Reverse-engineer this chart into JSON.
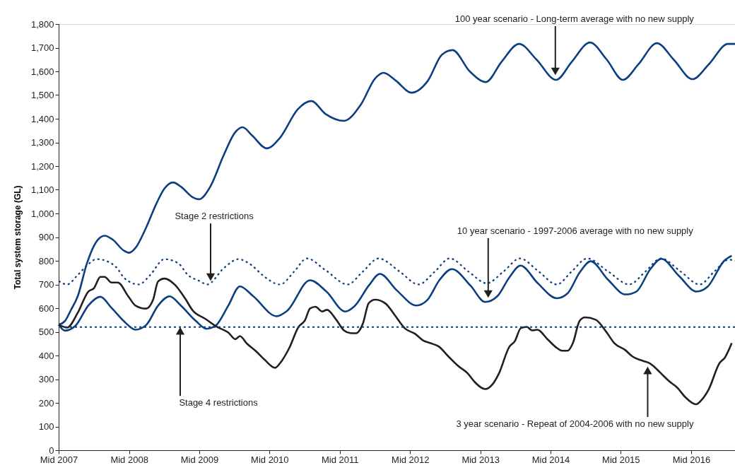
{
  "chart_data": {
    "type": "line",
    "ylabel": "Total system storage (GL)",
    "xlim": [
      "2007-07-01",
      "2017-02-14"
    ],
    "ylim": [
      0,
      1800
    ],
    "xticks": [
      {
        "value": "2007-07-01",
        "label": "Mid 2007"
      },
      {
        "value": "2008-07-01",
        "label": "Mid 2008"
      },
      {
        "value": "2009-07-01",
        "label": "Mid 2009"
      },
      {
        "value": "2010-07-01",
        "label": "Mid 2010"
      },
      {
        "value": "2011-07-01",
        "label": "Mid 2011"
      },
      {
        "value": "2012-07-01",
        "label": "Mid 2012"
      },
      {
        "value": "2013-07-01",
        "label": "Mid 2013"
      },
      {
        "value": "2014-07-01",
        "label": "Mid 2014"
      },
      {
        "value": "2015-07-01",
        "label": "Mid 2015"
      },
      {
        "value": "2016-07-01",
        "label": "Mid 2016"
      }
    ],
    "yticks": [
      {
        "value": 0,
        "label": "0"
      },
      {
        "value": 100,
        "label": "100"
      },
      {
        "value": 200,
        "label": "200"
      },
      {
        "value": 300,
        "label": "300"
      },
      {
        "value": 400,
        "label": "400"
      },
      {
        "value": 500,
        "label": "500"
      },
      {
        "value": 600,
        "label": "600"
      },
      {
        "value": 700,
        "label": "700"
      },
      {
        "value": 800,
        "label": "800"
      },
      {
        "value": 900,
        "label": "900"
      },
      {
        "value": 1000,
        "label": "1,000"
      },
      {
        "value": 1100,
        "label": "1,100"
      },
      {
        "value": 1200,
        "label": "1,200"
      },
      {
        "value": 1300,
        "label": "1,300"
      },
      {
        "value": 1400,
        "label": "1,400"
      },
      {
        "value": 1500,
        "label": "1,500"
      },
      {
        "value": 1600,
        "label": "1,600"
      },
      {
        "value": 1700,
        "label": "1,700"
      },
      {
        "value": 1800,
        "label": "1,800"
      }
    ],
    "grid": false,
    "marker": "none",
    "series": [
      {
        "color": "#0b3f80",
        "line_style": "solid",
        "x": [
          "2007-07-01",
          "2007-08-03",
          "2007-09-02",
          "2007-10-08",
          "2007-11-25",
          "2008-01-01",
          "2008-02-03",
          "2008-02-25",
          "2008-04-08",
          "2008-06-02",
          "2008-07-01",
          "2008-08-03",
          "2008-09-27",
          "2008-11-21",
          "2009-01-01",
          "2009-02-14",
          "2009-04-01",
          "2009-05-25",
          "2009-07-01",
          "2009-08-25",
          "2009-11-07",
          "2010-01-01",
          "2010-02-11",
          "2010-04-01",
          "2010-06-17",
          "2010-08-25",
          "2010-11-25",
          "2011-02-03",
          "2011-04-19",
          "2011-07-23",
          "2011-10-19",
          "2012-01-01",
          "2012-02-14",
          "2012-04-19",
          "2012-07-08",
          "2012-10-01",
          "2012-12-13",
          "2013-02-07",
          "2013-05-07",
          "2013-07-30",
          "2013-10-19",
          "2014-01-19",
          "2014-04-19",
          "2014-07-30",
          "2014-10-19",
          "2015-01-22",
          "2015-04-19",
          "2015-07-12",
          "2015-10-01",
          "2016-01-05",
          "2016-04-01",
          "2016-07-08",
          "2016-10-01",
          "2017-01-08",
          "2017-02-14"
        ],
        "values": [
          530,
          546,
          591,
          650,
          789,
          864,
          899,
          906,
          889,
          844,
          834,
          854,
          939,
          1043,
          1105,
          1131,
          1110,
          1070,
          1060,
          1110,
          1250,
          1340,
          1364,
          1330,
          1275,
          1320,
          1440,
          1475,
          1420,
          1391,
          1460,
          1570,
          1594,
          1560,
          1510,
          1560,
          1670,
          1690,
          1600,
          1555,
          1640,
          1716,
          1650,
          1564,
          1640,
          1722,
          1650,
          1564,
          1630,
          1719,
          1650,
          1567,
          1630,
          1716,
          1716
        ]
      },
      {
        "color": "#0b3f80",
        "line_style": "dotted",
        "x": [
          "2007-07-01",
          "2007-08-14",
          "2007-10-08",
          "2007-11-25",
          "2008-01-15",
          "2008-03-02",
          "2008-04-26",
          "2008-06-09",
          "2008-08-21",
          "2008-10-19",
          "2009-01-01",
          "2009-03-13",
          "2009-05-03",
          "2009-07-01",
          "2009-08-11",
          "2009-11-07",
          "2010-01-19",
          "2010-04-01",
          "2010-05-25",
          "2010-08-25",
          "2010-11-07",
          "2011-01-11",
          "2011-04-19",
          "2011-08-11",
          "2011-10-30",
          "2012-01-19",
          "2012-05-07",
          "2012-08-14",
          "2012-11-07",
          "2013-01-23",
          "2013-04-30",
          "2013-08-03",
          "2013-10-30",
          "2014-01-23",
          "2014-04-30",
          "2014-08-03",
          "2014-10-19",
          "2015-01-08",
          "2015-04-26",
          "2015-08-14",
          "2015-11-07",
          "2016-01-26",
          "2016-05-07",
          "2016-08-14",
          "2016-10-30",
          "2017-01-12",
          "2017-02-14"
        ],
        "values": [
          715,
          700,
          740,
          780,
          807,
          800,
          772,
          725,
          700,
          740,
          807,
          790,
          740,
          715,
          700,
          770,
          807,
          780,
          740,
          700,
          755,
          810,
          760,
          700,
          755,
          810,
          755,
          700,
          755,
          810,
          755,
          705,
          755,
          810,
          755,
          700,
          755,
          810,
          755,
          700,
          755,
          810,
          755,
          700,
          755,
          805,
          800
        ]
      },
      {
        "color": "#0b3f80",
        "line_style": "solid",
        "x": [
          "2007-07-01",
          "2007-08-03",
          "2007-09-27",
          "2007-12-02",
          "2008-02-03",
          "2008-04-01",
          "2008-06-09",
          "2008-08-03",
          "2008-09-27",
          "2008-11-29",
          "2009-01-28",
          "2009-03-27",
          "2009-06-13",
          "2009-08-07",
          "2009-09-24",
          "2009-11-29",
          "2010-01-28",
          "2010-04-08",
          "2010-08-07",
          "2010-10-01",
          "2011-01-28",
          "2011-04-23",
          "2011-07-30",
          "2011-09-17",
          "2011-11-29",
          "2012-01-26",
          "2012-04-23",
          "2012-08-03",
          "2012-09-27",
          "2012-12-02",
          "2013-02-03",
          "2013-05-11",
          "2013-07-26",
          "2013-09-27",
          "2013-11-29",
          "2014-01-26",
          "2014-04-26",
          "2014-08-03",
          "2014-09-27",
          "2014-11-29",
          "2015-01-26",
          "2015-04-26",
          "2015-07-26",
          "2015-09-20",
          "2015-12-02",
          "2016-01-28",
          "2016-04-30",
          "2016-07-30",
          "2016-09-24",
          "2016-12-20",
          "2017-01-28"
        ],
        "values": [
          530,
          505,
          526,
          611,
          648,
          601,
          541,
          509,
          528,
          611,
          650,
          611,
          546,
          513,
          526,
          611,
          692,
          650,
          566,
          589,
          718,
          670,
          586,
          609,
          695,
          745,
          675,
          611,
          633,
          720,
          765,
          695,
          626,
          650,
          730,
          780,
          705,
          642,
          662,
          750,
          798,
          720,
          658,
          670,
          765,
          808,
          735,
          670,
          690,
          800,
          821
        ]
      },
      {
        "color": "#231f20",
        "line_style": "solid",
        "x": [
          "2007-07-01",
          "2007-08-14",
          "2007-10-08",
          "2007-12-02",
          "2008-01-01",
          "2008-02-03",
          "2008-02-25",
          "2008-04-01",
          "2008-05-03",
          "2008-06-27",
          "2008-08-03",
          "2008-09-27",
          "2008-11-03",
          "2008-11-29",
          "2009-01-01",
          "2009-02-25",
          "2009-04-19",
          "2009-05-29",
          "2009-07-30",
          "2009-10-01",
          "2009-11-29",
          "2010-01-05",
          "2010-01-28",
          "2010-03-06",
          "2010-04-23",
          "2010-06-06",
          "2010-07-30",
          "2010-08-29",
          "2010-10-12",
          "2010-11-29",
          "2011-01-01",
          "2011-01-28",
          "2011-02-25",
          "2011-04-01",
          "2011-04-26",
          "2011-06-13",
          "2011-07-23",
          "2011-08-25",
          "2011-09-24",
          "2011-10-30",
          "2011-11-29",
          "2012-01-01",
          "2012-02-25",
          "2012-04-12",
          "2012-06-06",
          "2012-07-26",
          "2012-09-06",
          "2012-10-15",
          "2012-11-29",
          "2013-01-15",
          "2013-03-09",
          "2013-04-26",
          "2013-06-02",
          "2013-07-26",
          "2013-09-02",
          "2013-10-05",
          "2013-11-29",
          "2013-12-27",
          "2014-01-28",
          "2014-02-28",
          "2014-03-27",
          "2014-04-23",
          "2014-06-17",
          "2014-08-03",
          "2014-08-29",
          "2014-09-27",
          "2014-10-26",
          "2014-11-29",
          "2014-12-27",
          "2015-02-21",
          "2015-04-15",
          "2015-05-29",
          "2015-07-26",
          "2015-08-29",
          "2015-10-26",
          "2015-11-29",
          "2016-01-26",
          "2016-03-06",
          "2016-04-19",
          "2016-06-02",
          "2016-07-26",
          "2016-08-25",
          "2016-10-01",
          "2016-11-25",
          "2016-12-24",
          "2017-01-28"
        ],
        "values": [
          530,
          518,
          580,
          670,
          685,
          732,
          732,
          708,
          708,
          650,
          611,
          598,
          636,
          713,
          725,
          698,
          640,
          589,
          556,
          521,
          497,
          469,
          482,
          450,
          417,
          382,
          348,
          372,
          432,
          521,
          548,
          599,
          606,
          586,
          593,
          551,
          506,
          495,
          494,
          536,
          621,
          636,
          619,
          571,
          513,
          492,
          464,
          452,
          437,
          397,
          355,
          325,
          288,
          258,
          278,
          323,
          437,
          460,
          516,
          521,
          506,
          509,
          467,
          432,
          420,
          420,
          454,
          546,
          561,
          551,
          502,
          452,
          422,
          397,
          377,
          367,
          325,
          293,
          265,
          223,
          194,
          213,
          258,
          367,
          392,
          452
        ]
      }
    ],
    "ref_lines": [
      {
        "axis": "y",
        "value": 520,
        "label": null,
        "color": "#0b3f80",
        "line_style": "dotted"
      }
    ],
    "annotations": [
      {
        "text": "100 year scenario - Long-term average with no new supply",
        "x": "2014-07-26",
        "y": 1582
      },
      {
        "text": "Stage 2 restrictions",
        "x": "2009-08-29",
        "y": 713
      },
      {
        "text": "10 year scenario - 1997-2006 average with no new supply",
        "x": "2013-08-11",
        "y": 642
      },
      {
        "text": "Stage 4 restrictions",
        "x": "2009-03-24",
        "y": 522
      },
      {
        "text": "3 year scenario - Repeat of 2004-2006 with no new supply",
        "x": "2015-11-18",
        "y": 355
      }
    ]
  }
}
